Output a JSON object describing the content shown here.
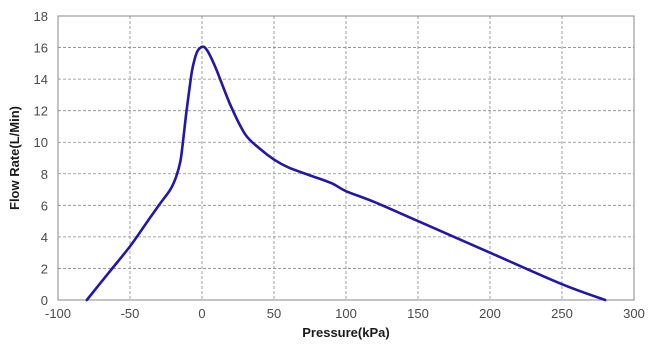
{
  "chart_data": {
    "type": "line",
    "xlabel": "Pressure(kPa)",
    "ylabel": "Flow Rate(L/Min)",
    "xlim": [
      -100,
      300
    ],
    "ylim": [
      0,
      18
    ],
    "x_ticks": [
      -100,
      -50,
      0,
      50,
      100,
      150,
      200,
      250,
      300
    ],
    "y_ticks": [
      0,
      2,
      4,
      6,
      8,
      10,
      12,
      14,
      16,
      18
    ],
    "x_tick_labels": [
      "-100",
      "-50",
      "0",
      "50",
      "100",
      "150",
      "200",
      "250",
      "300"
    ],
    "y_tick_labels": [
      "0",
      "2",
      "4",
      "6",
      "8",
      "10",
      "12",
      "14",
      "16",
      "18"
    ],
    "grid": true,
    "line_color": "#2217a8",
    "series": [
      {
        "x": [
          -80,
          -65,
          -50,
          -40,
          -30,
          -22,
          -18,
          -15,
          -13,
          -11,
          -9,
          -7,
          -5,
          -3,
          -1,
          0,
          2,
          5,
          10,
          20,
          30,
          40,
          50,
          60,
          75,
          90,
          100,
          120,
          150,
          200,
          250,
          280
        ],
        "y": [
          0,
          1.7,
          3.4,
          4.7,
          6.0,
          7.0,
          7.8,
          8.8,
          10.2,
          11.8,
          13.2,
          14.5,
          15.3,
          15.8,
          16.0,
          16.05,
          16.0,
          15.6,
          14.6,
          12.3,
          10.5,
          9.6,
          8.9,
          8.4,
          7.9,
          7.4,
          6.9,
          6.2,
          5.0,
          3.0,
          1.0,
          0
        ]
      }
    ]
  }
}
